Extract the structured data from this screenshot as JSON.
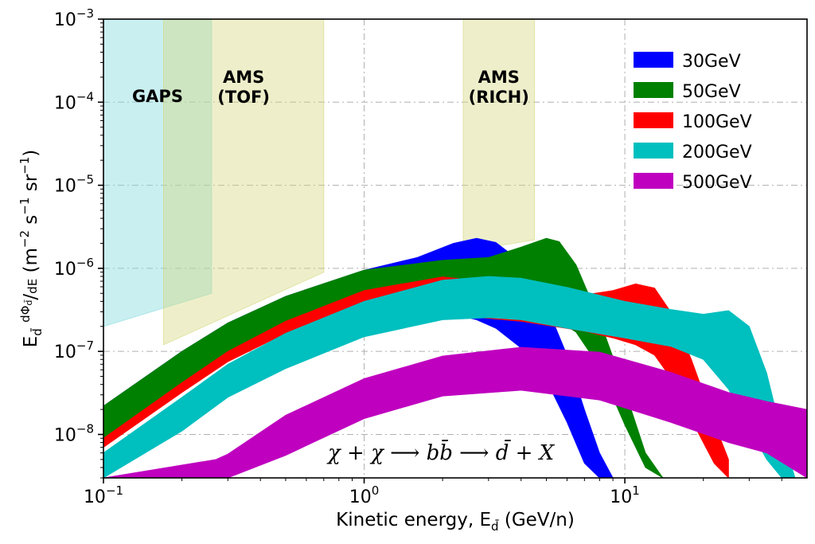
{
  "chart_data": {
    "type": "area",
    "xscale": "log",
    "yscale": "log",
    "xlim": [
      0.1,
      50
    ],
    "ylim": [
      3e-09,
      0.001
    ],
    "xlabel": "Kinetic energy, E_d̄ (GeV/n)",
    "ylabel": "E_d̄ dΦ_d̄/dE (m⁻² s⁻¹ sr⁻¹)",
    "grid": true,
    "legend_position": "top-right",
    "x_ticks": [
      {
        "value": 0.1,
        "base": "10",
        "exp": "−1"
      },
      {
        "value": 1,
        "base": "10",
        "exp": "0"
      },
      {
        "value": 10,
        "base": "10",
        "exp": "1"
      }
    ],
    "y_ticks": [
      {
        "value": 1e-08,
        "base": "10",
        "exp": "−8"
      },
      {
        "value": 1e-07,
        "base": "10",
        "exp": "−7"
      },
      {
        "value": 1e-06,
        "base": "10",
        "exp": "−6"
      },
      {
        "value": 1e-05,
        "base": "10",
        "exp": "−5"
      },
      {
        "value": 0.0001,
        "base": "10",
        "exp": "−4"
      },
      {
        "value": 0.001,
        "base": "10",
        "exp": "−3"
      }
    ],
    "sensitivity_regions": [
      {
        "label": [
          "GAPS"
        ],
        "color": "#88dce0",
        "opacity": 0.45,
        "polygon": [
          [
            0.1,
            0.001
          ],
          [
            0.26,
            0.001
          ],
          [
            0.26,
            5e-07
          ],
          [
            0.1,
            2e-07
          ]
        ]
      },
      {
        "label": [
          "AMS",
          "(TOF)"
        ],
        "color": "#d4d77a",
        "opacity": 0.4,
        "polygon": [
          [
            0.17,
            0.001
          ],
          [
            0.7,
            0.001
          ],
          [
            0.7,
            9e-07
          ],
          [
            0.17,
            1.2e-07
          ]
        ]
      },
      {
        "label": [
          "AMS",
          "(RICH)"
        ],
        "color": "#d4d77a",
        "opacity": 0.4,
        "polygon": [
          [
            2.4,
            0.001
          ],
          [
            4.5,
            0.001
          ],
          [
            4.5,
            2.2e-06
          ],
          [
            2.4,
            1.6e-06
          ]
        ]
      }
    ],
    "annotation": "χ + χ ⟶ bb̄ ⟶ d̄ + X",
    "series": [
      {
        "name": "30GeV",
        "color": "#0000ff",
        "x": [
          0.1,
          0.2,
          0.3,
          0.5,
          1.0,
          1.6,
          2.2,
          2.7,
          3.2,
          4.0,
          5.0,
          6.0,
          7.0,
          8.0,
          9.0,
          10.0
        ],
        "y_upper": [
          2.2e-08,
          1e-07,
          2.2e-07,
          4.6e-07,
          9.5e-07,
          1.35e-06,
          2e-06,
          2.3e-06,
          2.05e-06,
          1.2e-06,
          3.6e-07,
          9e-08,
          2e-08,
          6e-09,
          3e-09,
          3e-09
        ],
        "y_lower": [
          8e-09,
          3.6e-08,
          8.5e-08,
          1.7e-07,
          3.2e-07,
          2.9e-07,
          2.8e-07,
          2.4e-07,
          1.9e-07,
          1.1e-07,
          4.5e-08,
          1.4e-08,
          4.5e-09,
          3e-09,
          3e-09,
          3e-09
        ]
      },
      {
        "name": "50GeV",
        "color": "#008000",
        "x": [
          0.1,
          0.2,
          0.3,
          0.5,
          1.0,
          2.0,
          3.0,
          4.0,
          5.0,
          5.6,
          6.5,
          8.0,
          10.0,
          12.0,
          14.0
        ],
        "y_upper": [
          2.2e-08,
          1e-07,
          2.2e-07,
          4.6e-07,
          9.5e-07,
          1.25e-06,
          1.35e-06,
          1.8e-06,
          2.3e-06,
          2.1e-06,
          1.1e-06,
          2.4e-07,
          3.4e-08,
          6e-09,
          3e-09
        ],
        "y_lower": [
          8e-09,
          3.6e-08,
          8.5e-08,
          1.7e-07,
          3e-07,
          3.4e-07,
          3.3e-07,
          3.1e-07,
          2.6e-07,
          2.3e-07,
          1.7e-07,
          6.5e-08,
          1.3e-08,
          4e-09,
          3e-09
        ]
      },
      {
        "name": "100GeV",
        "color": "#ff0000",
        "x": [
          0.1,
          0.2,
          0.3,
          0.5,
          1.0,
          2.0,
          4.0,
          7.0,
          9.0,
          11.0,
          13.0,
          15.0,
          18.0,
          22.0,
          25.0
        ],
        "y_upper": [
          9e-09,
          4.2e-08,
          1e-07,
          2.3e-07,
          5.4e-07,
          7.9e-07,
          6.3e-07,
          4.8e-07,
          5.4e-07,
          6.5e-07,
          5.8e-07,
          3e-07,
          8e-08,
          1.4e-08,
          5e-09
        ],
        "y_lower": [
          7e-09,
          3.2e-08,
          7.5e-08,
          1.65e-07,
          3.2e-07,
          2.8e-07,
          2.3e-07,
          1.75e-07,
          1.45e-07,
          1.2e-07,
          9e-08,
          4.8e-08,
          1.5e-08,
          4.5e-09,
          3e-09
        ]
      },
      {
        "name": "200GeV",
        "color": "#00bfbf",
        "x": [
          0.1,
          0.2,
          0.3,
          0.5,
          1.0,
          2.0,
          3.0,
          4.0,
          6.0,
          10.0,
          15.0,
          20.0,
          25.0,
          30.0,
          35.0,
          40.0,
          45.0
        ],
        "y_upper": [
          6e-09,
          2.8e-08,
          7e-08,
          1.65e-07,
          4e-07,
          7.2e-07,
          8e-07,
          7.6e-07,
          5.9e-07,
          4e-07,
          3.2e-07,
          2.8e-07,
          3.1e-07,
          2e-07,
          5.5e-08,
          1e-08,
          3e-09
        ],
        "y_lower": [
          3e-09,
          1.1e-08,
          2.8e-08,
          6.2e-08,
          1.5e-07,
          2.4e-07,
          2.55e-07,
          2.4e-07,
          1.9e-07,
          1.45e-07,
          1.15e-07,
          8e-08,
          3.5e-08,
          1.2e-08,
          5e-09,
          3e-09,
          3e-09
        ]
      },
      {
        "name": "500GeV",
        "color": "#bf00bf",
        "x": [
          0.1,
          0.27,
          0.3,
          0.5,
          1.0,
          2.0,
          4.0,
          8.0,
          15.0,
          25.0,
          35.0,
          50.0
        ],
        "y_upper": [
          3e-09,
          5e-09,
          5.8e-09,
          1.7e-08,
          4.7e-08,
          8.8e-08,
          1.12e-07,
          9.8e-08,
          5.6e-08,
          3.2e-08,
          2.5e-08,
          2e-08
        ],
        "y_lower": [
          3e-09,
          3e-09,
          3e-09,
          5.6e-09,
          1.55e-08,
          2.9e-08,
          3.4e-08,
          2.6e-08,
          1.4e-08,
          8e-09,
          6e-09,
          3e-09
        ]
      }
    ]
  }
}
